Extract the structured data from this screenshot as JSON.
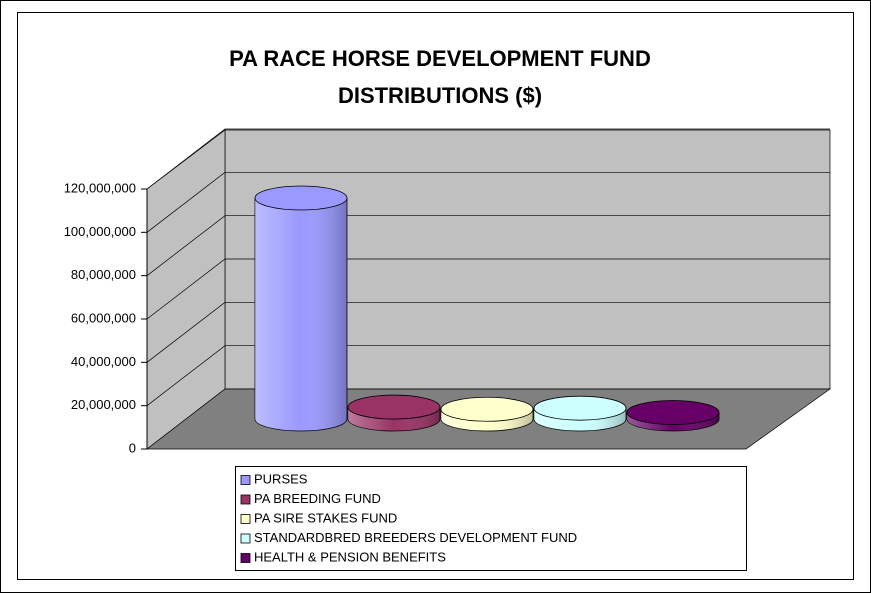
{
  "chart_data": {
    "type": "cylinder3d",
    "title": [
      "PA RACE HORSE DEVELOPMENT FUND",
      "DISTRIBUTIONS ($)"
    ],
    "categories": [
      "PURSES",
      "PA BREEDING FUND",
      "PA SIRE STAKES FUND",
      "STANDARDBRED BREEDERS DEVELOPMENT FUND",
      "HEALTH & PENSION BENEFITS"
    ],
    "values": [
      102000000,
      5500000,
      4500000,
      5000000,
      3000000
    ],
    "colors": [
      "#9999ff",
      "#993366",
      "#ffffcc",
      "#ccffff",
      "#660066"
    ],
    "ylim": [
      0,
      120000000
    ],
    "yticks": [
      0,
      {
        "value": 20000000,
        "label": "20,000,000"
      },
      {
        "value": 40000000,
        "label": "40,000,000"
      },
      {
        "value": 60000000,
        "label": "60,000,000"
      },
      {
        "value": 80000000,
        "label": "80,000,000"
      },
      {
        "value": 100000000,
        "label": "100,000,000"
      },
      {
        "value": 120000000,
        "label": "120,000,000"
      }
    ],
    "grid": true
  }
}
